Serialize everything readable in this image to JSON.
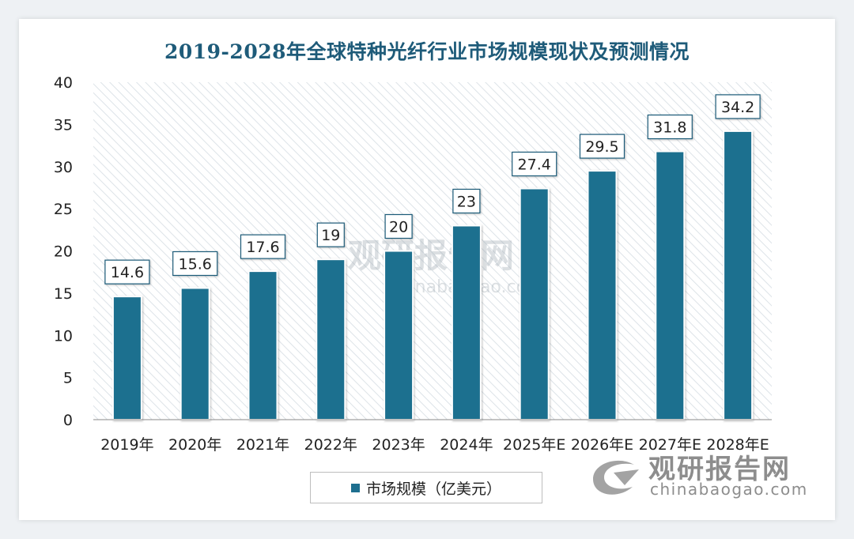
{
  "title": "2019-2028年全球特种光纤行业市场规模现状及预测情况",
  "legend": {
    "label": "市场规模（亿美元）",
    "color": "#1e6f8f"
  },
  "watermark": {
    "brand": "观研报告网",
    "domain": "chinabaogao.com"
  },
  "chart_data": {
    "type": "bar",
    "title": "2019-2028年全球特种光纤行业市场规模现状及预测情况",
    "categories": [
      "2019年",
      "2020年",
      "2021年",
      "2022年",
      "2023年",
      "2024年",
      "2025年E",
      "2026年E",
      "2027年E",
      "2028年E"
    ],
    "series": [
      {
        "name": "市场规模（亿美元）",
        "values": [
          14.6,
          15.6,
          17.6,
          19,
          20,
          23,
          27.4,
          29.5,
          31.8,
          34.2
        ]
      }
    ],
    "value_labels": [
      "14.6",
      "15.6",
      "17.6",
      "19",
      "20",
      "23",
      "27.4",
      "29.5",
      "31.8",
      "34.2"
    ],
    "ylim": [
      0,
      40
    ],
    "yticks": [
      0,
      5,
      10,
      15,
      20,
      25,
      30,
      35,
      40
    ],
    "xlabel": "",
    "ylabel": "",
    "grid": false,
    "legend_position": "bottom-center"
  }
}
